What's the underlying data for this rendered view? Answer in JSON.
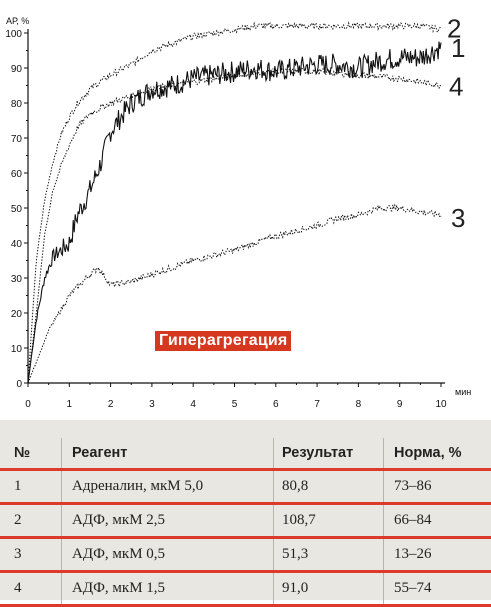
{
  "chart_data": {
    "type": "line",
    "ylabel": "АР, %",
    "xlabel": "мин",
    "xlim": [
      0,
      10
    ],
    "ylim": [
      0,
      100
    ],
    "x_ticks": [
      "0",
      "1",
      "2",
      "3",
      "4",
      "5",
      "6",
      "7",
      "8",
      "9",
      "10"
    ],
    "y_ticks": [
      "0",
      "10",
      "20",
      "30",
      "40",
      "50",
      "60",
      "70",
      "80",
      "90",
      "100"
    ],
    "grid": false,
    "series": [
      {
        "name": "1",
        "style": "solid-noisy",
        "x": [
          0,
          0.2,
          0.4,
          0.6,
          0.8,
          1,
          1.2,
          1.5,
          1.8,
          2,
          2.5,
          3,
          3.5,
          4,
          4.5,
          5,
          5.5,
          6,
          6.5,
          7,
          7.5,
          8,
          8.5,
          9,
          9.5,
          10
        ],
        "values": [
          0,
          18,
          30,
          36,
          38,
          40,
          48,
          55,
          64,
          72,
          80,
          84,
          85,
          87,
          88,
          89,
          90,
          89,
          90,
          91,
          91,
          90,
          92,
          93,
          93,
          96
        ]
      },
      {
        "name": "2",
        "style": "dotted",
        "x": [
          0,
          0.2,
          0.4,
          0.6,
          0.8,
          1,
          1.2,
          1.5,
          2,
          2.5,
          3,
          3.5,
          4,
          4.5,
          5,
          5.5,
          6,
          6.5,
          7,
          7.5,
          8,
          8.5,
          9,
          9.5,
          10
        ],
        "values": [
          0,
          35,
          52,
          63,
          71,
          76,
          80,
          84,
          88,
          91,
          95,
          97,
          99,
          100,
          101,
          102,
          102,
          102,
          102,
          102,
          102,
          102,
          102,
          102,
          101
        ]
      },
      {
        "name": "3",
        "style": "dotted",
        "x": [
          0,
          0.5,
          1,
          1.5,
          1.7,
          2,
          2.5,
          3,
          4,
          5,
          6,
          7,
          7.5,
          8,
          8.5,
          9,
          9.5,
          10
        ],
        "values": [
          0,
          15,
          25,
          31,
          33,
          28,
          29,
          31,
          35,
          38,
          42,
          45,
          47,
          48,
          50,
          50,
          49,
          48
        ]
      },
      {
        "name": "4",
        "style": "dotted",
        "x": [
          0,
          0.2,
          0.4,
          0.6,
          0.8,
          1,
          1.2,
          1.5,
          2,
          2.5,
          3,
          4,
          5,
          6,
          7,
          8,
          9,
          10
        ],
        "values": [
          0,
          20,
          42,
          55,
          62,
          68,
          73,
          77,
          80,
          82,
          84,
          86,
          88,
          89,
          89,
          88,
          87,
          85
        ]
      }
    ],
    "banner": "Гиперагрегация"
  },
  "table": {
    "headers": [
      "№",
      "Реагент",
      "Результат",
      "Норма, %"
    ],
    "rows": [
      [
        "1",
        "Адреналин, мкМ 5,0",
        "80,8",
        "73–86"
      ],
      [
        "2",
        "АДФ, мкМ 2,5",
        "108,7",
        "66–84"
      ],
      [
        "3",
        "АДФ, мкМ 0,5",
        "51,3",
        "13–26"
      ],
      [
        "4",
        "АДФ, мкМ 1,5",
        "91,0",
        "55–74"
      ]
    ]
  },
  "colors": {
    "banner_bg": "#d6371f",
    "rule": "#de3a2c",
    "table_bg": "#e9e7e1",
    "line": "#111111"
  }
}
